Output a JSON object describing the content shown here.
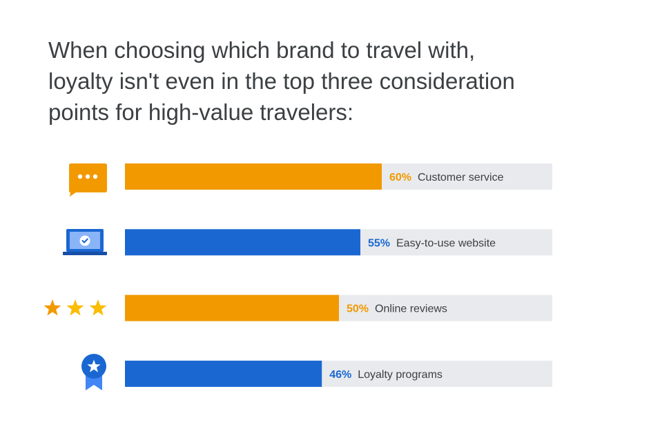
{
  "title_lines": [
    "When choosing which brand to travel with,",
    "loyalty isn't even in the top three consideration",
    "points for high-value travelers:"
  ],
  "chart_data": {
    "type": "bar",
    "orientation": "horizontal",
    "title": "When choosing which brand to travel with, loyalty isn't even in the top three consideration points for high-value travelers:",
    "xlim": [
      0,
      100
    ],
    "grid": false,
    "value_suffix": "%",
    "categories": [
      "Customer service",
      "Easy-to-use website",
      "Online reviews",
      "Loyalty programs"
    ],
    "values": [
      60,
      55,
      50,
      46
    ],
    "value_labels": [
      "60%",
      "55%",
      "50%",
      "46%"
    ],
    "bar_colors": [
      "#f29900",
      "#1a67d2",
      "#f29900",
      "#1a67d2"
    ],
    "icons": [
      "chat-bubble-icon",
      "laptop-check-icon",
      "three-stars-icon",
      "award-ribbon-icon"
    ]
  },
  "colors": {
    "track": "#e8eaed",
    "orange": "#f29900",
    "blue": "#1a67d2",
    "star": "#fbbc04",
    "text": "#3c4043"
  }
}
